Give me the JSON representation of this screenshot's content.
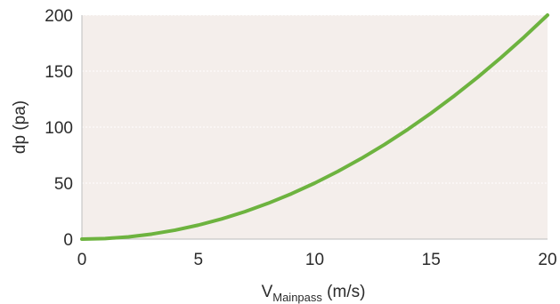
{
  "chart_data": {
    "type": "line",
    "title": "",
    "xlabel": "V",
    "xlabel_subscript": "Mainpass",
    "xlabel_unit": " (m/s)",
    "ylabel": "dp (pa)",
    "xlim": [
      0,
      20
    ],
    "ylim": [
      0,
      200
    ],
    "x_ticks": [
      0,
      5,
      10,
      15,
      20
    ],
    "y_ticks": [
      0,
      50,
      100,
      150,
      200
    ],
    "grid": true,
    "legend": "none",
    "series": [
      {
        "x": [
          0,
          1,
          2,
          3,
          4,
          5,
          6,
          7,
          8,
          9,
          10,
          11,
          12,
          13,
          14,
          15,
          16,
          17,
          18,
          19,
          20
        ],
        "values": [
          0,
          0.5,
          2,
          4.5,
          8,
          12.5,
          18,
          24.5,
          32,
          40.5,
          50,
          60.5,
          72,
          84.5,
          98,
          112.5,
          128,
          144.5,
          162,
          180.5,
          200
        ]
      }
    ],
    "colors": {
      "line": "#6db33f",
      "plot_background": "#f4eeeb",
      "grid": "#ffffff",
      "axis": "#bdbdbd"
    }
  }
}
